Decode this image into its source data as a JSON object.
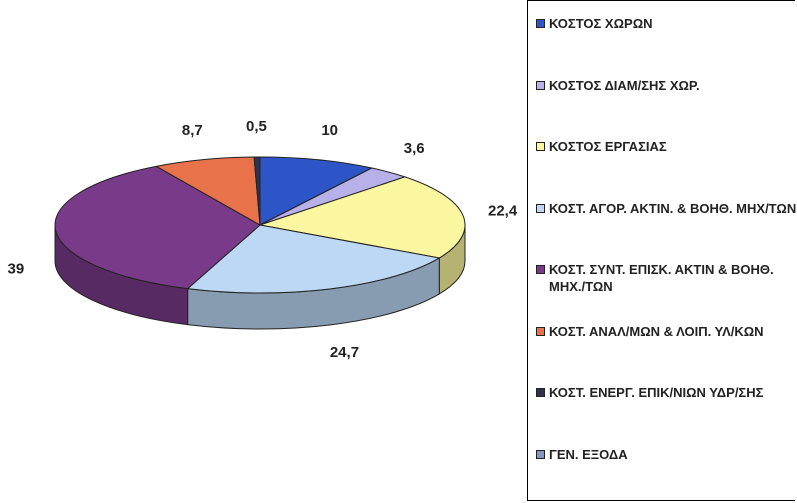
{
  "chart_data": {
    "type": "pie3d",
    "categories": [
      "ΚΟΣΤΟΣ ΧΩΡΩΝ",
      "ΚΟΣΤΟΣ ΔΙΑΜ/ΣΗΣ ΧΩΡ.",
      "ΚΟΣΤΟΣ ΕΡΓΑΣΙΑΣ",
      "ΚΟΣΤ. ΑΓΟΡ. ΑΚΤΙΝ. & ΒΟΗΘ. ΜΗΧ/ΤΩΝ",
      "ΚΟΣΤ. ΣΥΝΤ. ΕΠΙΣΚ. ΑΚΤΙΝ & ΒΟΗΘ. ΜΗΧ./ΤΩΝ",
      "ΚΟΣΤ. ΑΝΑΛ/ΜΩΝ & ΛΟΙΠ. ΥΛ/ΚΩΝ",
      "ΚΟΣΤ. ΕΝΕΡΓ. ΕΠΙΚ/ΝΙΩΝ ΥΔΡ/ΣΗΣ",
      "ΓΕΝ. ΕΞΟΔΑ"
    ],
    "values": [
      10,
      3.6,
      22.4,
      24.7,
      39,
      8.7,
      0.5,
      null
    ],
    "value_labels": [
      "10",
      "3,6",
      "22,4",
      "24,7",
      "39",
      "8,7",
      "0,5",
      null
    ],
    "colors": [
      "#2d55c8",
      "#b8b0e8",
      "#fbf7a0",
      "#bcd8f4",
      "#7a3a8a",
      "#e8724a",
      "#303050",
      "#8098c0"
    ],
    "legend": "right"
  }
}
